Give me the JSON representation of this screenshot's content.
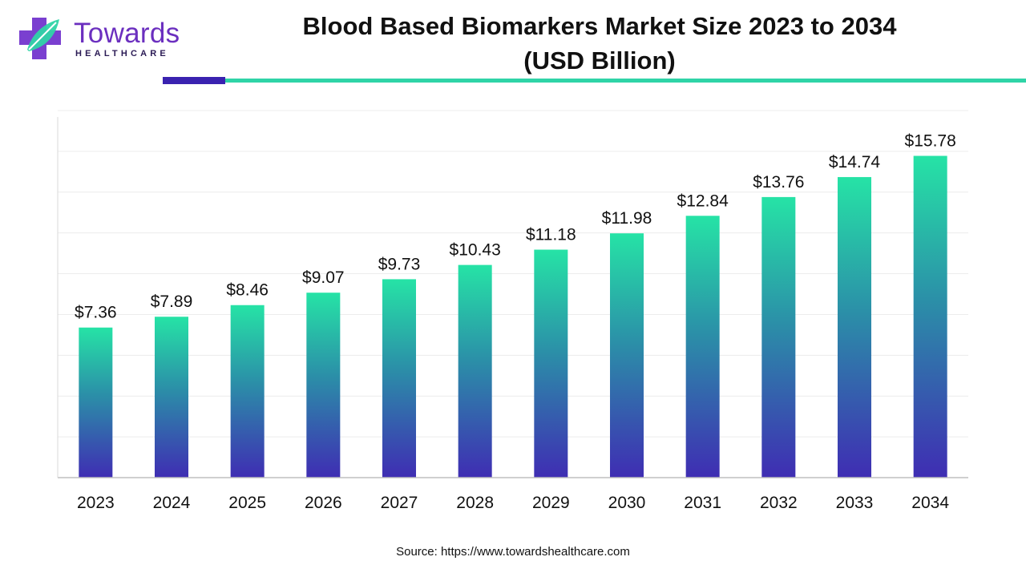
{
  "header": {
    "logo_name": "Towards",
    "logo_sub": "HEALTHCARE",
    "title_line1": "Blood Based Biomarkers Market Size 2023 to 2034",
    "title_line2": "(USD Billion)"
  },
  "footer": {
    "source": "Source: https://www.towardshealthcare.com"
  },
  "colors": {
    "bar_top": "#26e3a6",
    "bar_mid": "#2b8fa8",
    "bar_bottom": "#3f2db3",
    "accent_purple": "#3a22b0",
    "accent_teal": "#2fd4a7",
    "logo_purple": "#6b2fbf",
    "logo_teal": "#2fd4a7"
  },
  "chart_data": {
    "type": "bar",
    "title": "Blood Based Biomarkers Market Size 2023 to 2034 (USD Billion)",
    "categories": [
      "2023",
      "2024",
      "2025",
      "2026",
      "2027",
      "2028",
      "2029",
      "2030",
      "2031",
      "2032",
      "2033",
      "2034"
    ],
    "values": [
      7.36,
      7.89,
      8.46,
      9.07,
      9.73,
      10.43,
      11.18,
      11.98,
      12.84,
      13.76,
      14.74,
      15.78
    ],
    "value_labels": [
      "$7.36",
      "$7.89",
      "$8.46",
      "$9.07",
      "$9.73",
      "$10.43",
      "$11.18",
      "$11.98",
      "$12.84",
      "$13.76",
      "$14.74",
      "$15.78"
    ],
    "xlabel": "",
    "ylabel": "",
    "ylim": [
      0,
      18
    ],
    "grid": true,
    "legend": "none"
  }
}
